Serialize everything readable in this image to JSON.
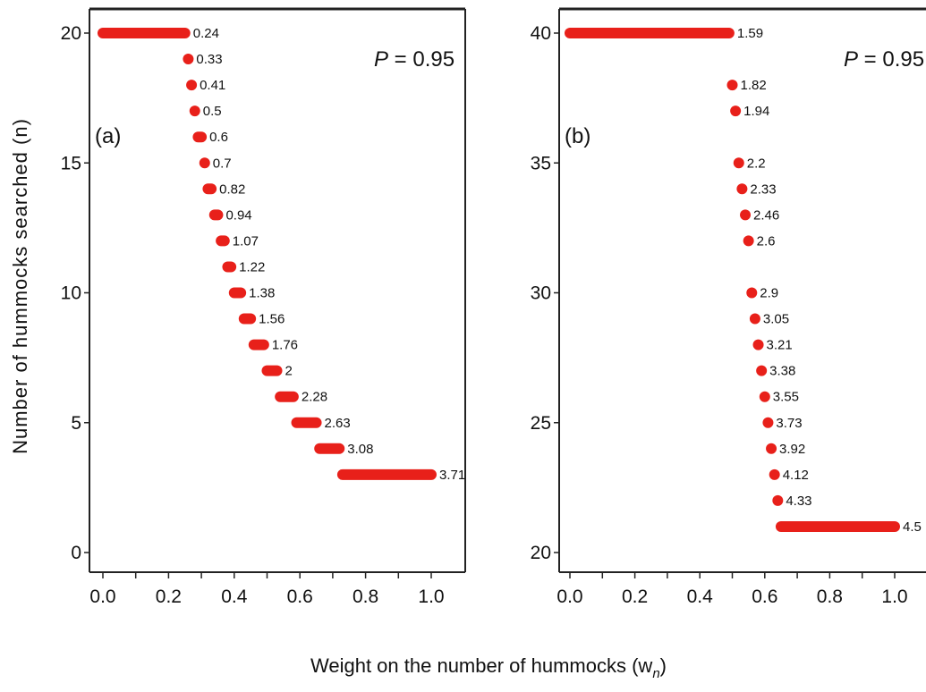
{
  "ylabel": "Number of hummocks searched (n)",
  "xlabel": "Weight on the number of hummocks (w",
  "xlabel_sub": "n",
  "xlabel_close": ")",
  "colors": {
    "bar": "#e8201a",
    "axis": "#222222"
  },
  "chart_data": [
    {
      "type": "scatter",
      "panel": "(a)",
      "annotation_p": "P",
      "annotation_val": "= 0.95",
      "xlim": [
        0.0,
        1.0
      ],
      "ylim": [
        0,
        20
      ],
      "xticks": [
        "0.0",
        "0.2",
        "0.4",
        "0.6",
        "0.8",
        "1.0"
      ],
      "yticks": [
        "0",
        "5",
        "10",
        "15",
        "20"
      ],
      "grid": false,
      "intervals": [
        {
          "n": 20,
          "w_from": 0.0,
          "w_to": 0.25,
          "label": "0.24"
        },
        {
          "n": 19,
          "w_from": 0.26,
          "w_to": 0.26,
          "label": "0.33"
        },
        {
          "n": 18,
          "w_from": 0.27,
          "w_to": 0.27,
          "label": "0.41"
        },
        {
          "n": 17,
          "w_from": 0.28,
          "w_to": 0.28,
          "label": "0.5"
        },
        {
          "n": 16,
          "w_from": 0.29,
          "w_to": 0.3,
          "label": "0.6"
        },
        {
          "n": 15,
          "w_from": 0.31,
          "w_to": 0.31,
          "label": "0.7"
        },
        {
          "n": 14,
          "w_from": 0.32,
          "w_to": 0.33,
          "label": "0.82"
        },
        {
          "n": 13,
          "w_from": 0.34,
          "w_to": 0.35,
          "label": "0.94"
        },
        {
          "n": 12,
          "w_from": 0.36,
          "w_to": 0.37,
          "label": "1.07"
        },
        {
          "n": 11,
          "w_from": 0.38,
          "w_to": 0.39,
          "label": "1.22"
        },
        {
          "n": 10,
          "w_from": 0.4,
          "w_to": 0.42,
          "label": "1.38"
        },
        {
          "n": 9,
          "w_from": 0.43,
          "w_to": 0.45,
          "label": "1.56"
        },
        {
          "n": 8,
          "w_from": 0.46,
          "w_to": 0.49,
          "label": "1.76"
        },
        {
          "n": 7,
          "w_from": 0.5,
          "w_to": 0.53,
          "label": "2"
        },
        {
          "n": 6,
          "w_from": 0.54,
          "w_to": 0.58,
          "label": "2.28"
        },
        {
          "n": 5,
          "w_from": 0.59,
          "w_to": 0.65,
          "label": "2.63"
        },
        {
          "n": 4,
          "w_from": 0.66,
          "w_to": 0.72,
          "label": "3.08"
        },
        {
          "n": 3,
          "w_from": 0.73,
          "w_to": 1.0,
          "label": "3.71"
        }
      ]
    },
    {
      "type": "scatter",
      "panel": "(b)",
      "annotation_p": "P",
      "annotation_val": "= 0.95",
      "xlim": [
        0.0,
        1.0
      ],
      "ylim": [
        20,
        40
      ],
      "xticks": [
        "0.0",
        "0.2",
        "0.4",
        "0.6",
        "0.8",
        "1.0"
      ],
      "yticks": [
        "20",
        "25",
        "30",
        "35",
        "40"
      ],
      "grid": false,
      "intervals": [
        {
          "n": 40,
          "w_from": 0.0,
          "w_to": 0.49,
          "label": "1.59"
        },
        {
          "n": 38,
          "w_from": 0.5,
          "w_to": 0.5,
          "label": "1.82"
        },
        {
          "n": 37,
          "w_from": 0.51,
          "w_to": 0.51,
          "label": "1.94"
        },
        {
          "n": 35,
          "w_from": 0.52,
          "w_to": 0.52,
          "label": "2.2"
        },
        {
          "n": 34,
          "w_from": 0.53,
          "w_to": 0.53,
          "label": "2.33"
        },
        {
          "n": 33,
          "w_from": 0.54,
          "w_to": 0.54,
          "label": "2.46"
        },
        {
          "n": 32,
          "w_from": 0.55,
          "w_to": 0.55,
          "label": "2.6"
        },
        {
          "n": 30,
          "w_from": 0.56,
          "w_to": 0.56,
          "label": "2.9"
        },
        {
          "n": 29,
          "w_from": 0.57,
          "w_to": 0.57,
          "label": "3.05"
        },
        {
          "n": 28,
          "w_from": 0.58,
          "w_to": 0.58,
          "label": "3.21"
        },
        {
          "n": 27,
          "w_from": 0.59,
          "w_to": 0.59,
          "label": "3.38"
        },
        {
          "n": 26,
          "w_from": 0.6,
          "w_to": 0.6,
          "label": "3.55"
        },
        {
          "n": 25,
          "w_from": 0.61,
          "w_to": 0.61,
          "label": "3.73"
        },
        {
          "n": 24,
          "w_from": 0.62,
          "w_to": 0.62,
          "label": "3.92"
        },
        {
          "n": 23,
          "w_from": 0.63,
          "w_to": 0.63,
          "label": "4.12"
        },
        {
          "n": 22,
          "w_from": 0.64,
          "w_to": 0.64,
          "label": "4.33"
        },
        {
          "n": 21,
          "w_from": 0.65,
          "w_to": 1.0,
          "label": "4.5"
        }
      ]
    }
  ]
}
